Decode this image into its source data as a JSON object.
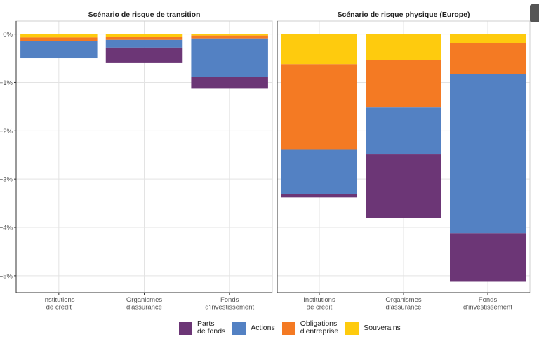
{
  "chart_data": [
    {
      "type": "bar",
      "stacked": true,
      "title": "Scénario de risque de transition",
      "categories": [
        "Institutions\nde crédit",
        "Organismes\nd'assurance",
        "Fonds\nd'investissement"
      ],
      "series": [
        {
          "name": "Souverains",
          "values": [
            -0.07,
            -0.05,
            -0.03
          ]
        },
        {
          "name": "Obligations\nd'entreprise",
          "values": [
            -0.08,
            -0.07,
            -0.06
          ]
        },
        {
          "name": "Actions",
          "values": [
            -0.35,
            -0.16,
            -0.79
          ]
        },
        {
          "name": "Parts\nde fonds",
          "values": [
            0,
            -0.32,
            -0.25
          ]
        }
      ],
      "yticks": [
        "0%",
        "−1%",
        "−2%",
        "−3%",
        "−4%",
        "−5%"
      ],
      "ylim": [
        -5.35,
        0.27
      ],
      "grid": true
    },
    {
      "type": "bar",
      "stacked": true,
      "title": "Scénario de risque physique (Europe)",
      "categories": [
        "Institutions\nde crédit",
        "Organismes\nd'assurance",
        "Fonds\nd'investissement"
      ],
      "series": [
        {
          "name": "Souverains",
          "values": [
            -0.62,
            -0.54,
            -0.18
          ]
        },
        {
          "name": "Obligations\nd'entreprise",
          "values": [
            -1.76,
            -0.98,
            -0.65
          ]
        },
        {
          "name": "Actions",
          "values": [
            -0.93,
            -0.97,
            -3.29
          ]
        },
        {
          "name": "Parts\nde fonds",
          "values": [
            -0.07,
            -1.31,
            -0.99
          ]
        }
      ],
      "ylim": [
        -5.35,
        0.27
      ],
      "grid": true
    }
  ],
  "legend": {
    "placement": "bottom",
    "items": [
      {
        "label": "Parts\nde fonds",
        "color": "#6C3676"
      },
      {
        "label": "Actions",
        "color": "#5381C3"
      },
      {
        "label": "Obligations\nd'entreprise",
        "color": "#F47A23"
      },
      {
        "label": "Souverains",
        "color": "#FECB0E"
      }
    ]
  },
  "colors": {
    "Souverains": "#FECB0E",
    "Obligations\nd'entreprise": "#F47A23",
    "Actions": "#5381C3",
    "Parts\nde fonds": "#6C3676"
  }
}
